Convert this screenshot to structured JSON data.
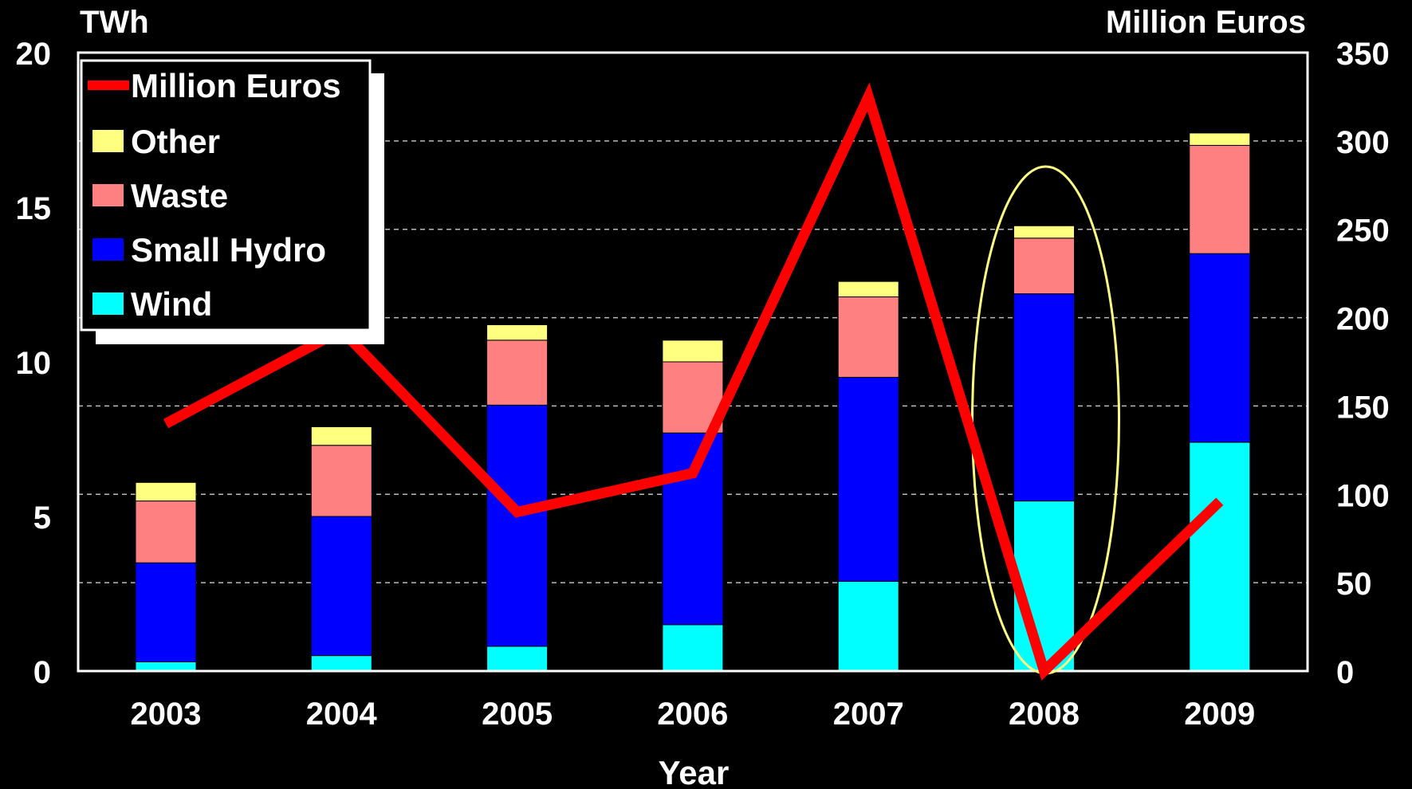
{
  "chart_data": {
    "type": "bar",
    "stacked": true,
    "categories": [
      "2003",
      "2004",
      "2005",
      "2006",
      "2007",
      "2008",
      "2009"
    ],
    "xlabel": "Year",
    "ylabel": "TWh",
    "ylabel_right": "Million Euros",
    "ylim": [
      0,
      20
    ],
    "yticks": [
      0,
      5,
      10,
      15,
      20
    ],
    "ylim_right": [
      0,
      350
    ],
    "yticks_right": [
      0,
      50,
      100,
      150,
      200,
      250,
      300,
      350
    ],
    "grid": "horizontal dashed",
    "legend_position": "top-left",
    "series": [
      {
        "name": "Wind",
        "color": "#00ffff",
        "values": [
          0.3,
          0.5,
          0.8,
          1.5,
          2.9,
          5.5,
          7.4
        ]
      },
      {
        "name": "Small Hydro",
        "color": "#0000ff",
        "values": [
          3.2,
          4.5,
          7.8,
          6.2,
          6.6,
          6.7,
          6.1
        ]
      },
      {
        "name": "Waste",
        "color": "#ff8080",
        "values": [
          2.0,
          2.3,
          2.1,
          2.3,
          2.6,
          1.8,
          3.5
        ]
      },
      {
        "name": "Other",
        "color": "#ffff80",
        "values": [
          0.6,
          0.6,
          0.5,
          0.7,
          0.5,
          0.4,
          0.4
        ]
      }
    ],
    "line_series": {
      "name": "Million Euros",
      "axis": "right",
      "color": "#ff0000",
      "values": [
        140,
        193,
        90,
        112,
        325,
        0,
        96
      ]
    },
    "annotation": {
      "type": "ellipse",
      "category": "2008",
      "color": "#ffff80"
    }
  }
}
